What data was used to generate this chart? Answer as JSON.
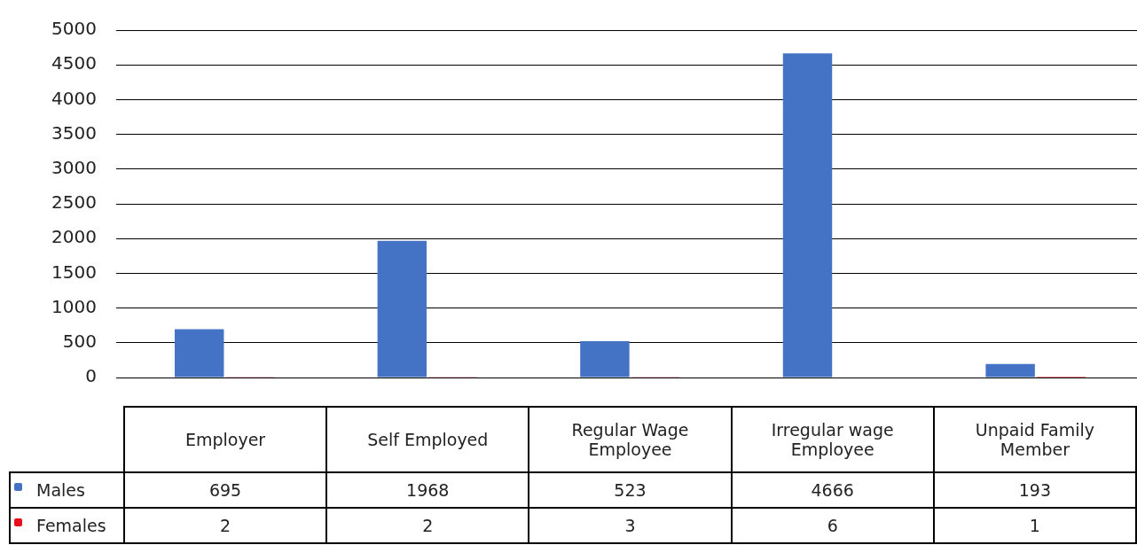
{
  "chart_data": {
    "type": "bar",
    "categories": [
      "Employer",
      "Self Employed",
      "Regular Wage Employee",
      "Irregular wage Employee",
      "Unpaid Family Member"
    ],
    "series": [
      {
        "name": "Males",
        "color": "#4472c4",
        "values": [
          695,
          1968,
          523,
          4666,
          193
        ]
      },
      {
        "name": "Females",
        "color": "#e8101a",
        "values": [
          2,
          2,
          3,
          6,
          1
        ]
      }
    ],
    "ylim": [
      0,
      5000
    ],
    "yticks": [
      0,
      500,
      1000,
      1500,
      2000,
      2500,
      3000,
      3500,
      4000,
      4500,
      5000
    ],
    "grid": "y",
    "legend": "bottom",
    "data_labels": true
  }
}
